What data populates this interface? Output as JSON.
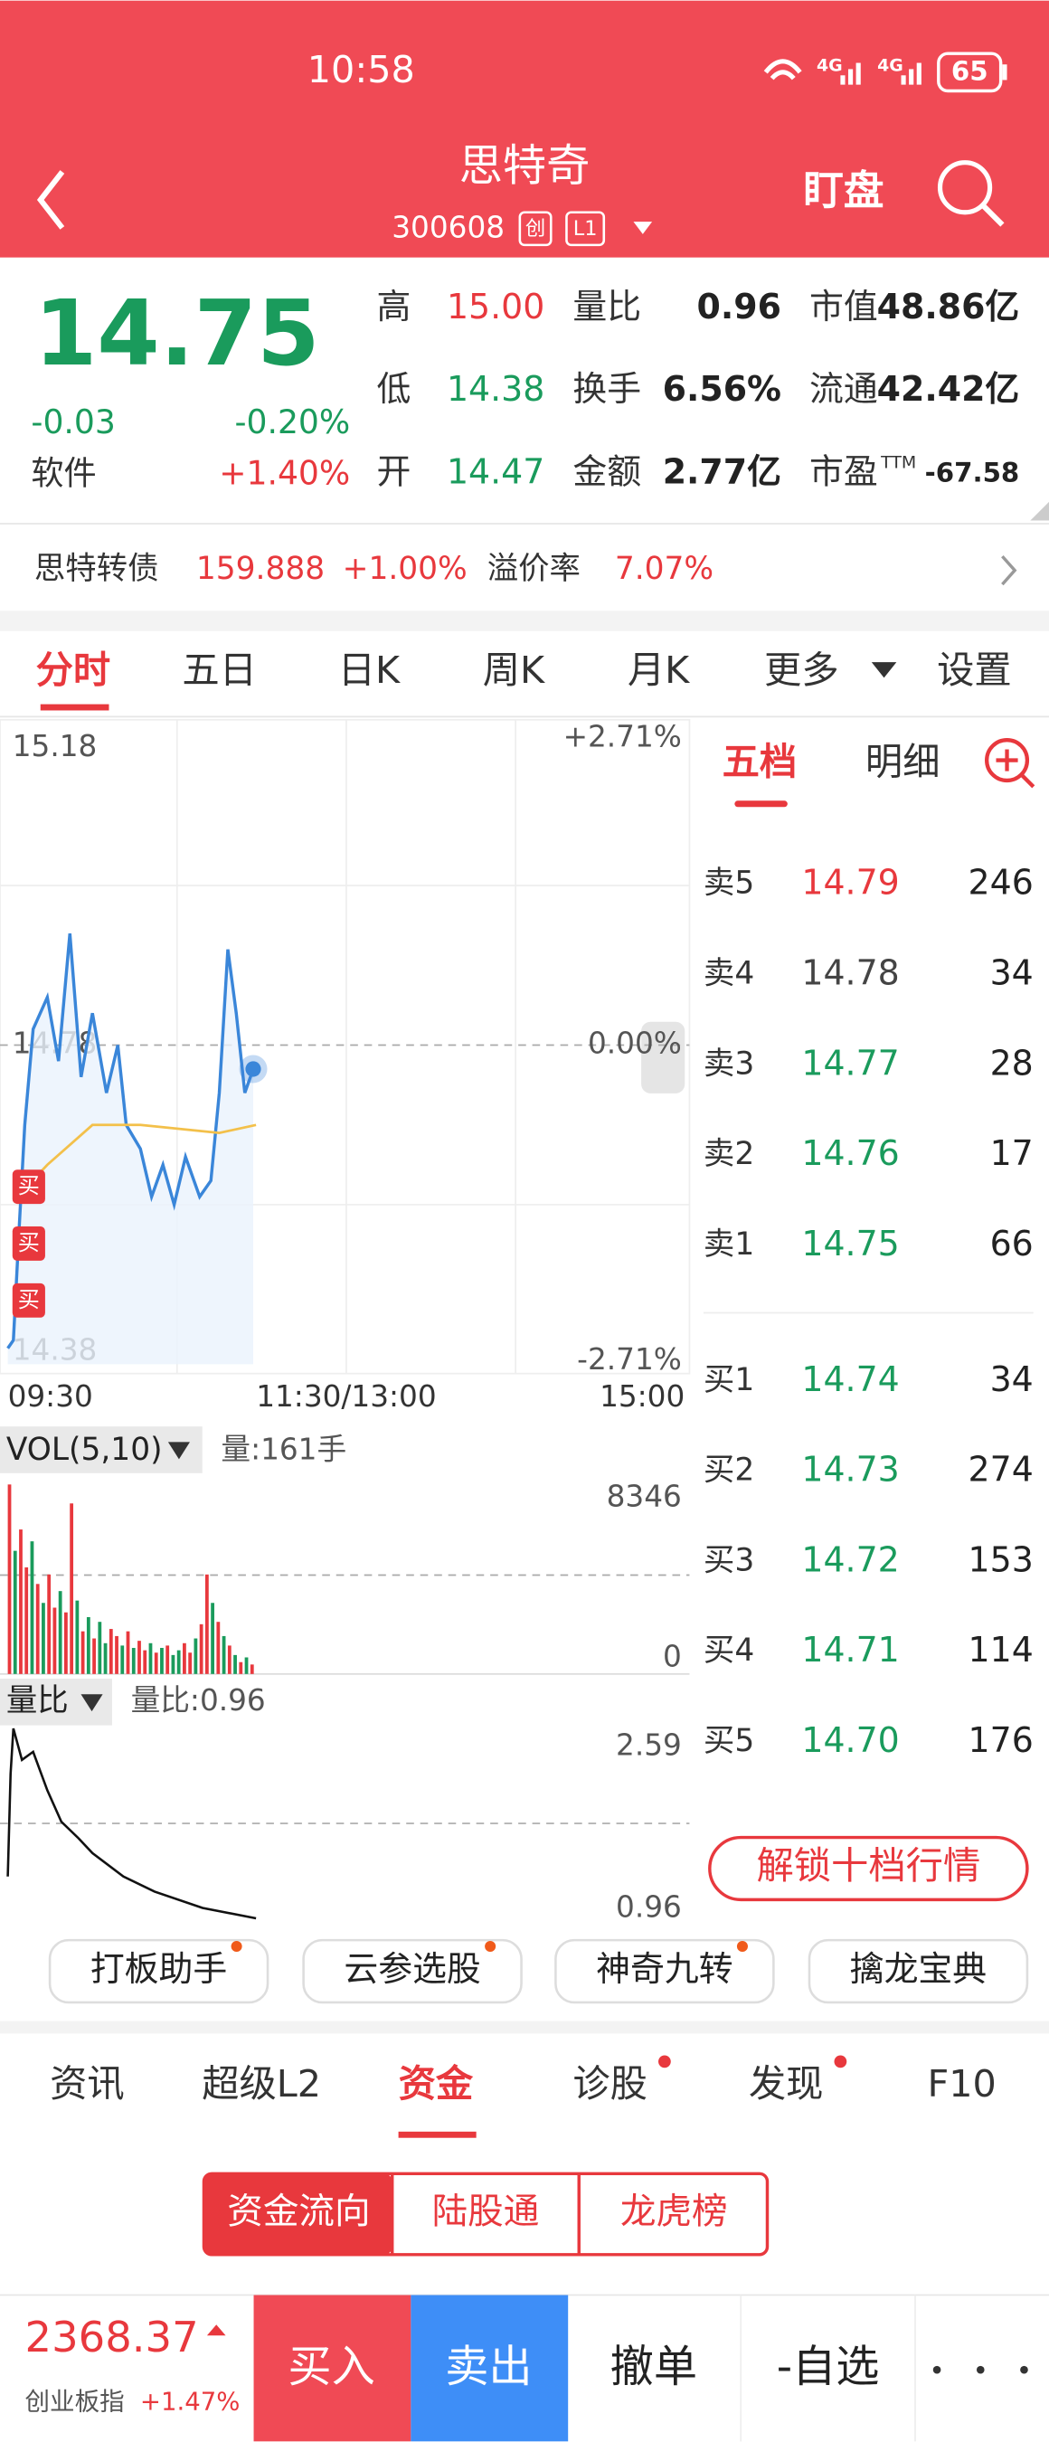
{
  "status_bar": {
    "time": "10:58",
    "network": [
      "4G",
      "4G"
    ],
    "battery": 65
  },
  "header": {
    "title": "思特奇",
    "code": "300608",
    "badges": [
      "创",
      "L1"
    ],
    "action": "盯盘"
  },
  "quote": {
    "price": "14.75",
    "change": "-0.03",
    "change_pct": "-0.20%",
    "sector": "软件",
    "sector_change": "+1.40%",
    "stats": [
      [
        {
          "label": "高",
          "value": "15.00",
          "color": "#e8383d"
        },
        {
          "label": "量比",
          "value": "0.96"
        },
        {
          "label": "市值",
          "value": "48.86亿"
        }
      ],
      [
        {
          "label": "低",
          "value": "14.38",
          "color": "#1a9b5c"
        },
        {
          "label": "换手",
          "value": "6.56%"
        },
        {
          "label": "流通",
          "value": "42.42亿"
        }
      ],
      [
        {
          "label": "开",
          "value": "14.47",
          "color": "#1a9b5c"
        },
        {
          "label": "金额",
          "value": "2.77亿"
        },
        {
          "label": "市盈",
          "sup": "TTM",
          "value": "-67.58"
        }
      ]
    ]
  },
  "bond": {
    "name": "思特转债",
    "price": "159.888",
    "change": "+1.00%",
    "premium_label": "溢价率",
    "premium": "7.07%"
  },
  "tabs": {
    "items": [
      "分时",
      "五日",
      "日K",
      "周K",
      "月K",
      "更多",
      "设置"
    ],
    "active": 0
  },
  "chart_data": [
    {
      "type": "line",
      "xlim": [
        0,
        240
      ],
      "ylim": [
        14.38,
        15.18
      ],
      "yticks": [
        15.18,
        14.78,
        14.38
      ],
      "y2lim": [
        -2.71,
        2.71
      ],
      "y2ticks": [
        {
          "value": 2.71,
          "label": "+2.71%"
        },
        {
          "value": 0,
          "label": "0.00%"
        },
        {
          "value": -2.71,
          "label": "-2.71%"
        }
      ],
      "xticks": [
        {
          "value": 0,
          "label": "09:30"
        },
        {
          "value": 120,
          "label": "11:30/13:00"
        },
        {
          "value": 240,
          "label": "15:00"
        }
      ],
      "series": [
        {
          "color": "#3a86d9",
          "x": [
            0,
            2,
            4,
            6,
            9,
            14,
            18,
            22,
            26,
            30,
            35,
            39,
            42,
            47,
            51,
            55,
            59,
            63,
            68,
            72,
            75,
            78,
            81,
            84,
            87
          ],
          "values": [
            14.4,
            14.41,
            14.55,
            14.68,
            14.8,
            14.84,
            14.76,
            14.92,
            14.74,
            14.82,
            14.72,
            14.78,
            14.68,
            14.65,
            14.59,
            14.63,
            14.58,
            14.64,
            14.59,
            14.61,
            14.72,
            14.9,
            14.82,
            14.72,
            14.75
          ]
        },
        {
          "color": "#f3c04a",
          "x": [
            6,
            14,
            30,
            47,
            75,
            88
          ],
          "values": [
            14.6,
            14.63,
            14.68,
            14.68,
            14.67,
            14.68
          ]
        }
      ],
      "markers": [
        "买",
        "买",
        "买"
      ]
    },
    {
      "type": "bar",
      "title": "VOL(5,10)",
      "info": "量:161手",
      "xlim": [
        0,
        240
      ],
      "ylim": [
        0,
        8346
      ],
      "yticks": [
        8346,
        0
      ],
      "up_color": "#e8383d",
      "down_color": "#1a9b5c",
      "x": [
        0,
        2,
        4,
        6,
        8,
        10,
        12,
        14,
        16,
        18,
        20,
        22,
        24,
        26,
        28,
        30,
        32,
        34,
        36,
        38,
        40,
        42,
        44,
        46,
        48,
        50,
        52,
        54,
        56,
        58,
        60,
        62,
        64,
        66,
        68,
        70,
        72,
        74,
        76,
        78,
        80,
        82,
        84,
        86
      ],
      "values": [
        8000,
        5200,
        6100,
        4500,
        5600,
        3800,
        3000,
        4200,
        2800,
        3500,
        2600,
        7200,
        3100,
        1800,
        2400,
        1500,
        2200,
        1300,
        1900,
        1600,
        1200,
        1800,
        1100,
        1400,
        1000,
        1300,
        900,
        1100,
        1200,
        800,
        1000,
        1300,
        900,
        1500,
        2100,
        4200,
        3000,
        2200,
        1600,
        1200,
        800,
        500,
        700,
        400
      ],
      "up": [
        true,
        false,
        true,
        true,
        false,
        true,
        false,
        true,
        true,
        false,
        true,
        true,
        false,
        true,
        false,
        true,
        false,
        false,
        true,
        true,
        false,
        true,
        false,
        true,
        true,
        false,
        true,
        false,
        true,
        false,
        false,
        true,
        true,
        false,
        true,
        true,
        false,
        true,
        false,
        true,
        false,
        true,
        false,
        true
      ]
    },
    {
      "type": "line",
      "title": "量比",
      "info": "量比:0.96",
      "xlim": [
        0,
        240
      ],
      "ylim": [
        0.96,
        2.59
      ],
      "yticks": [
        2.59,
        0.96
      ],
      "color": "#111",
      "x": [
        0,
        1,
        2,
        5,
        9,
        14,
        19,
        25,
        30,
        41,
        52,
        69,
        88
      ],
      "values": [
        1.32,
        2.2,
        2.59,
        2.32,
        2.39,
        2.06,
        1.79,
        1.65,
        1.52,
        1.32,
        1.19,
        1.05,
        0.96
      ]
    }
  ],
  "order_book": {
    "tabs": [
      "五档",
      "明细"
    ],
    "asks": [
      {
        "label": "卖5",
        "price": "14.79",
        "volume": "246",
        "color": "#e8383d"
      },
      {
        "label": "卖4",
        "price": "14.78",
        "volume": "34",
        "color": "#444"
      },
      {
        "label": "卖3",
        "price": "14.77",
        "volume": "28",
        "color": "#1a9b5c"
      },
      {
        "label": "卖2",
        "price": "14.76",
        "volume": "17",
        "color": "#1a9b5c"
      },
      {
        "label": "卖1",
        "price": "14.75",
        "volume": "66",
        "color": "#1a9b5c"
      }
    ],
    "bids": [
      {
        "label": "买1",
        "price": "14.74",
        "volume": "34",
        "color": "#1a9b5c"
      },
      {
        "label": "买2",
        "price": "14.73",
        "volume": "274",
        "color": "#1a9b5c"
      },
      {
        "label": "买3",
        "price": "14.72",
        "volume": "153",
        "color": "#1a9b5c"
      },
      {
        "label": "买4",
        "price": "14.71",
        "volume": "114",
        "color": "#1a9b5c"
      },
      {
        "label": "买5",
        "price": "14.70",
        "volume": "176",
        "color": "#1a9b5c"
      }
    ],
    "unlock": "解锁十档行情"
  },
  "tools": [
    "打板助手",
    "云参选股",
    "神奇九转",
    "擒龙宝典"
  ],
  "bottom_tabs": {
    "items": [
      "资讯",
      "超级L2",
      "资金",
      "诊股",
      "发现",
      "F10"
    ],
    "active": 2
  },
  "fund_tabs": {
    "items": [
      "资金流向",
      "陆股通",
      "龙虎榜"
    ],
    "active": 0
  },
  "footer": {
    "index_value": "2368.37",
    "index_name": "创业板指",
    "index_change": "+1.47%",
    "actions": [
      "买入",
      "卖出",
      "撤单",
      "-自选"
    ]
  }
}
